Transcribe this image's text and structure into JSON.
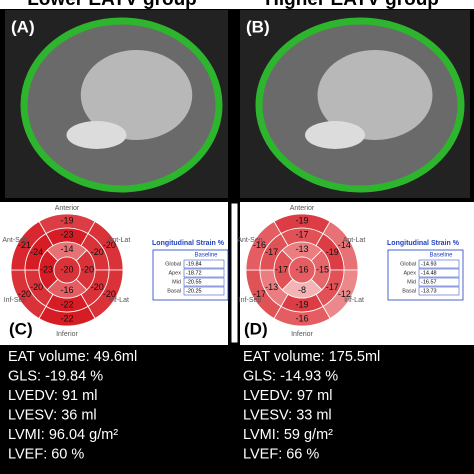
{
  "titles": [
    "Lower EATV group",
    "Higher EATV group"
  ],
  "panels": [
    {
      "image_label": "(A)",
      "plot_label": "(C)",
      "directions": [
        "Anterior",
        "Ant-Lat",
        "Inf-Lat",
        "Inferior",
        "Inf-Sep",
        "Ant-Sep"
      ],
      "segments": [
        -19,
        -20,
        -20,
        -22,
        -20,
        -21,
        -23,
        -20,
        -20,
        -22,
        -20,
        -24,
        -14,
        -20,
        -16,
        -23,
        -20
      ],
      "strain": {
        "title": "Longitudinal Strain %",
        "header": "Baseline",
        "rows": [
          [
            "Global",
            "-19.84"
          ],
          [
            "Apex",
            "-18.72"
          ],
          [
            "Mid",
            "-20.55"
          ],
          [
            "Basal",
            "-20.25"
          ]
        ]
      },
      "metrics": [
        "EAT volume: 49.6ml",
        "GLS: -19.84 %",
        "LVEDV: 91 ml",
        "LVESV: 36 ml",
        "LVMI: 96.04 g/m²",
        "LVEF: 60 %"
      ]
    },
    {
      "image_label": "(B)",
      "plot_label": "(D)",
      "directions": [
        "Anterior",
        "Ant-Lat",
        "Inf-Lat",
        "Inferior",
        "Inf-Sep",
        "Ant-Sep"
      ],
      "segments": [
        -19,
        -14,
        -12,
        -16,
        -17,
        -16,
        -17,
        -19,
        -17,
        -19,
        -13,
        -17,
        -13,
        -15,
        -8,
        -17,
        -16
      ],
      "strain": {
        "title": "Longitudinal Strain %",
        "header": "Baseline",
        "rows": [
          [
            "Global",
            "-14.93"
          ],
          [
            "Apex",
            "-14.48"
          ],
          [
            "Mid",
            "-16.57"
          ],
          [
            "Basal",
            "-13.73"
          ]
        ]
      },
      "metrics": [
        "EAT volume: 175.5ml",
        "GLS: -14.93 %",
        "LVEDV: 97 ml",
        "LVESV: 33 ml",
        "LVMI: 59 g/m²",
        "LVEF: 66 %"
      ]
    }
  ]
}
